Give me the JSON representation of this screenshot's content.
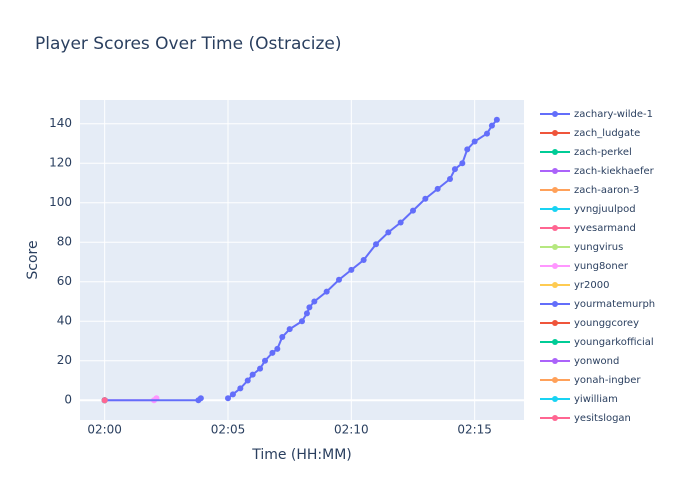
{
  "chart_data": {
    "type": "line",
    "title": "Player Scores Over Time (Ostracize)",
    "xlabel": "Time (HH:MM)",
    "ylabel": "Score",
    "xlim": [
      -1,
      17
    ],
    "ylim": [
      -10,
      152
    ],
    "xticks": [
      {
        "value": 0,
        "label": "02:00"
      },
      {
        "value": 5,
        "label": "02:05"
      },
      {
        "value": 10,
        "label": "02:10"
      },
      {
        "value": 15,
        "label": "02:15"
      }
    ],
    "yticks": [
      0,
      20,
      40,
      60,
      80,
      100,
      120,
      140
    ],
    "grid": true,
    "legend": "right",
    "series": [
      {
        "name": "zachary-wilde-1",
        "color": "#636efa",
        "x": [
          5.0,
          5.2,
          5.5,
          5.8,
          6.0,
          6.3,
          6.5,
          6.8,
          7.0,
          7.2,
          7.5,
          8.0,
          8.2,
          8.3,
          8.5,
          9.0,
          9.5,
          10.0,
          10.5,
          11.0,
          11.5,
          12.0,
          12.5,
          13.0,
          13.5,
          14.0,
          14.2,
          14.5,
          14.7,
          15.0,
          15.5,
          15.7,
          15.9
        ],
        "values": [
          1,
          3,
          6,
          10,
          13,
          16,
          20,
          24,
          26,
          32,
          36,
          40,
          44,
          47,
          50,
          55,
          61,
          66,
          71,
          79,
          85,
          90,
          96,
          102,
          107,
          112,
          117,
          120,
          127,
          131,
          135,
          139,
          142
        ]
      },
      {
        "name": "zach_ludgate",
        "color": "#EF553B",
        "x": [
          0
        ],
        "values": [
          0
        ]
      },
      {
        "name": "zach-perkel",
        "color": "#00cc96",
        "x": [
          0
        ],
        "values": [
          0
        ]
      },
      {
        "name": "zach-kiekhaefer",
        "color": "#ab63fa",
        "x": [
          0
        ],
        "values": [
          0
        ]
      },
      {
        "name": "zach-aaron-3",
        "color": "#FFA15A",
        "x": [
          0
        ],
        "values": [
          0
        ]
      },
      {
        "name": "yvngjuulpod",
        "color": "#19d3f3",
        "x": [
          0
        ],
        "values": [
          0
        ]
      },
      {
        "name": "yvesarmand",
        "color": "#FF6692",
        "x": [
          0
        ],
        "values": [
          0
        ]
      },
      {
        "name": "yungvirus",
        "color": "#B6E880",
        "x": [
          0
        ],
        "values": [
          0
        ]
      },
      {
        "name": "yung8oner",
        "color": "#FF97FF",
        "x": [
          0,
          2.0,
          2.1
        ],
        "values": [
          0,
          0,
          1
        ]
      },
      {
        "name": "yr2000",
        "color": "#FECB52",
        "x": [
          0
        ],
        "values": [
          0
        ]
      },
      {
        "name": "yourmatemurph",
        "color": "#636efa",
        "x": [
          0,
          3.8,
          3.9
        ],
        "values": [
          0,
          0,
          1
        ]
      },
      {
        "name": "younggcorey",
        "color": "#EF553B",
        "x": [
          0
        ],
        "values": [
          0
        ]
      },
      {
        "name": "youngarkofficial",
        "color": "#00cc96",
        "x": [
          0
        ],
        "values": [
          0
        ]
      },
      {
        "name": "yonwond",
        "color": "#ab63fa",
        "x": [
          0
        ],
        "values": [
          0
        ]
      },
      {
        "name": "yonah-ingber",
        "color": "#FFA15A",
        "x": [
          0
        ],
        "values": [
          0
        ]
      },
      {
        "name": "yiwilliam",
        "color": "#19d3f3",
        "x": [
          0
        ],
        "values": [
          0
        ]
      },
      {
        "name": "yesitslogan",
        "color": "#FF6692",
        "x": [
          0
        ],
        "values": [
          0
        ]
      }
    ]
  }
}
